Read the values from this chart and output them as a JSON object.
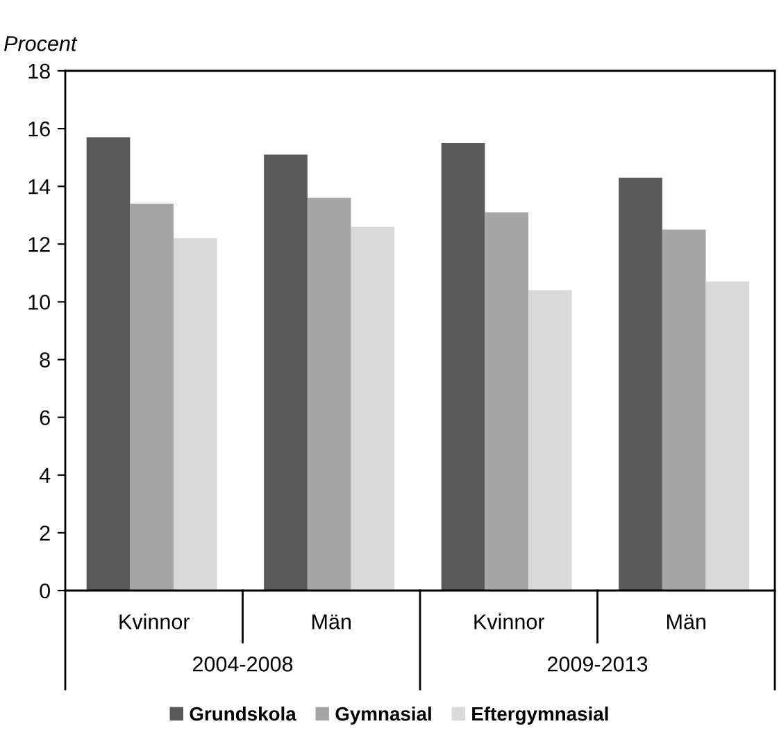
{
  "chart_data": {
    "type": "bar",
    "ylabel": "Procent",
    "categories": [
      "Kvinnor",
      "Män",
      "Kvinnor",
      "Män"
    ],
    "series": [
      {
        "name": "Grundskola",
        "color": "#595959",
        "values": [
          15.7,
          15.1,
          15.5,
          14.3
        ]
      },
      {
        "name": "Gymnasial",
        "color": "#a6a6a6",
        "values": [
          13.4,
          13.6,
          13.1,
          12.5
        ]
      },
      {
        "name": "Eftergymnasial",
        "color": "#d9d9d9",
        "values": [
          12.2,
          12.6,
          10.4,
          10.7
        ]
      }
    ],
    "annotations": [
      "2004-2008",
      "2009-2013"
    ],
    "ylim": [
      0,
      18
    ],
    "yticks": [
      0,
      2,
      4,
      6,
      8,
      10,
      12,
      14,
      16,
      18
    ],
    "grid": false,
    "legend": "bottom"
  }
}
